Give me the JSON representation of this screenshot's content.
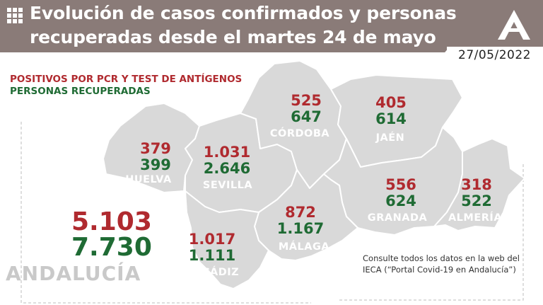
{
  "header": {
    "title_line1": "Evolución de casos confirmados y personas",
    "title_line2": "recuperadas desde el martes 24 de mayo",
    "date": "27/05/2022",
    "icon": "grid-icon",
    "logo": "junta-andalucia-logo"
  },
  "legend": {
    "pcr": "POSITIVOS POR PCR Y TEST DE ANTÍGENOS",
    "recovered": "PERSONAS RECUPERADAS"
  },
  "provinces": [
    {
      "name": "HUELVA",
      "positives": "379",
      "recovered": "399"
    },
    {
      "name": "SEVILLA",
      "positives": "1.031",
      "recovered": "2.646"
    },
    {
      "name": "CÓRDOBA",
      "positives": "525",
      "recovered": "647"
    },
    {
      "name": "JAÉN",
      "positives": "405",
      "recovered": "614"
    },
    {
      "name": "GRANADA",
      "positives": "556",
      "recovered": "624"
    },
    {
      "name": "ALMERÍA",
      "positives": "318",
      "recovered": "522"
    },
    {
      "name": "MÁLAGA",
      "positives": "872",
      "recovered": "1.167"
    },
    {
      "name": "CÁDIZ",
      "positives": "1.017",
      "recovered": "1.111"
    }
  ],
  "total": {
    "region": "ANDALUCÍA",
    "positives": "5.103",
    "recovered": "7.730"
  },
  "note": {
    "line1": "Consulte todos los datos en la web del",
    "line2": "IECA (“Portal Covid-19 en Andalucía”)"
  },
  "colors": {
    "header_bg": "#8a7b78",
    "positives": "#b02a2f",
    "recovered": "#1f6b34",
    "map_fill": "#d9d9d9",
    "province_border": "#ffffff"
  }
}
